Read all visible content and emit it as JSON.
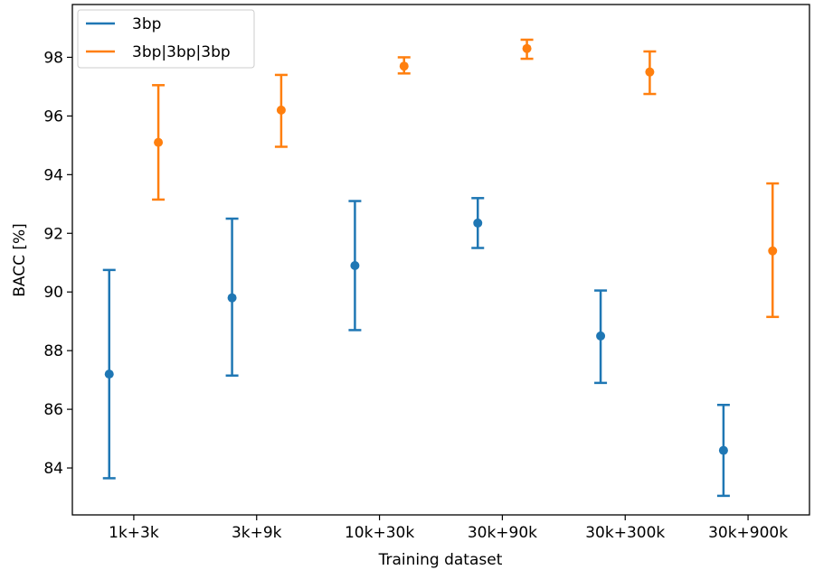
{
  "chart_data": {
    "type": "scatter",
    "xlabel": "Training dataset",
    "ylabel": "BACC [%]",
    "categories": [
      "1k+3k",
      "3k+9k",
      "10k+30k",
      "30k+90k",
      "30k+300k",
      "30k+900k"
    ],
    "ylim": [
      82.4,
      99.8
    ],
    "yticks": [
      84,
      86,
      88,
      90,
      92,
      94,
      96,
      98
    ],
    "grid": false,
    "legend_position": "top-left",
    "series": [
      {
        "name": "3bp",
        "color": "#1f77b4",
        "values": [
          87.2,
          89.8,
          90.9,
          92.35,
          88.5,
          84.6
        ],
        "err_low": [
          83.65,
          87.15,
          88.7,
          91.5,
          86.9,
          83.05
        ],
        "err_high": [
          90.75,
          92.5,
          93.1,
          93.2,
          90.05,
          86.15
        ]
      },
      {
        "name": "3bp|3bp|3bp",
        "color": "#ff7f0e",
        "values": [
          95.1,
          96.2,
          97.7,
          98.3,
          97.5,
          91.4
        ],
        "err_low": [
          93.15,
          94.95,
          97.45,
          97.95,
          96.75,
          89.15
        ],
        "err_high": [
          97.05,
          97.4,
          98.0,
          98.6,
          98.2,
          93.7
        ]
      }
    ]
  }
}
